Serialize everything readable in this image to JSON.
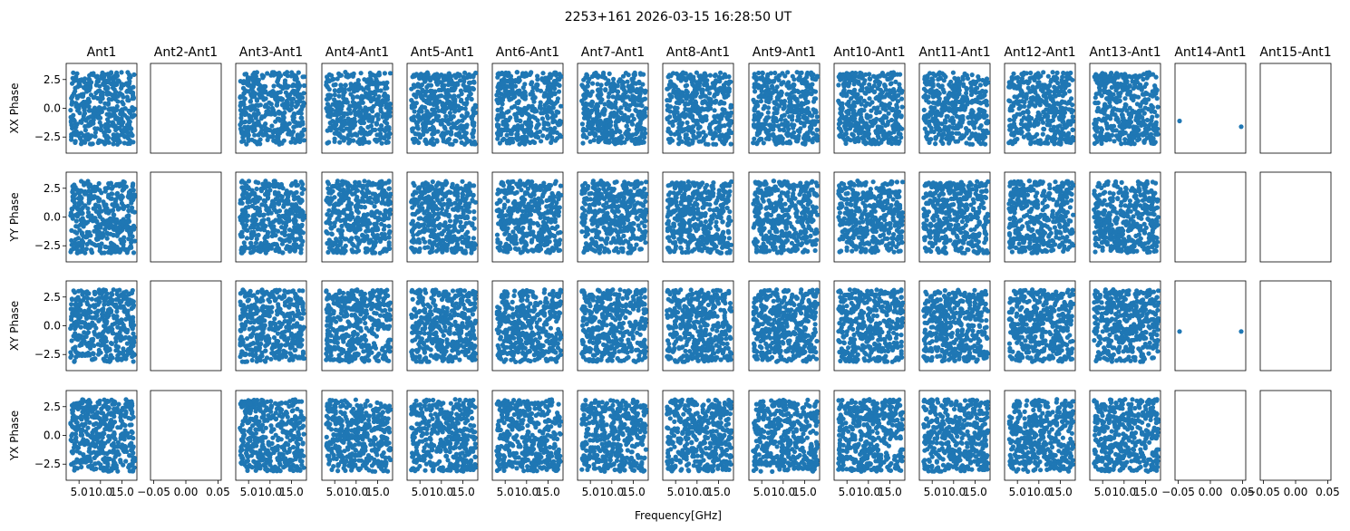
{
  "chart_data": {
    "type": "scatter",
    "title": "2253+161 2026-03-15 16:28:50 UT",
    "xlabel": "Frequency[GHz]",
    "columns": [
      "Ant1",
      "Ant2-Ant1",
      "Ant3-Ant1",
      "Ant4-Ant1",
      "Ant5-Ant1",
      "Ant6-Ant1",
      "Ant7-Ant1",
      "Ant8-Ant1",
      "Ant9-Ant1",
      "Ant10-Ant1",
      "Ant11-Ant1",
      "Ant12-Ant1",
      "Ant13-Ant1",
      "Ant14-Ant1",
      "Ant15-Ant1"
    ],
    "rows": [
      "XX Phase",
      "YY Phase",
      "XY Phase",
      "YX Phase"
    ],
    "ylim": [
      -3.9,
      3.9
    ],
    "yticks": [
      -2.5,
      0.0,
      2.5
    ],
    "ytick_labels": [
      "−2.5",
      "0.0",
      "2.5"
    ],
    "freq_xlim": [
      2.0,
      18.5
    ],
    "freq_xticks": [
      5.0,
      10.0,
      15.0
    ],
    "freq_xtick_labels": [
      "5.0",
      "10.0",
      "15.0"
    ],
    "empty_xlim": [
      -0.055,
      0.055
    ],
    "empty_xticks": [
      -0.05,
      0.0,
      0.05
    ],
    "empty_xtick_labels": [
      "−0.05",
      "0.00",
      "0.05"
    ],
    "marker_color": "#1f77b4",
    "points_per_panel": 420,
    "populated_columns": [
      0,
      2,
      3,
      4,
      5,
      6,
      7,
      8,
      9,
      10,
      11,
      12
    ],
    "phase_range": [
      -3.14,
      3.14
    ],
    "freq_range": [
      3.0,
      18.0
    ],
    "sparse_panels": [
      {
        "row": 0,
        "col": 13,
        "points": [
          [
            -0.048,
            -1.1
          ],
          [
            0.048,
            -1.6
          ]
        ]
      },
      {
        "row": 2,
        "col": 13,
        "points": [
          [
            -0.048,
            -0.5
          ],
          [
            0.048,
            -0.5
          ]
        ]
      }
    ],
    "grid": false
  }
}
